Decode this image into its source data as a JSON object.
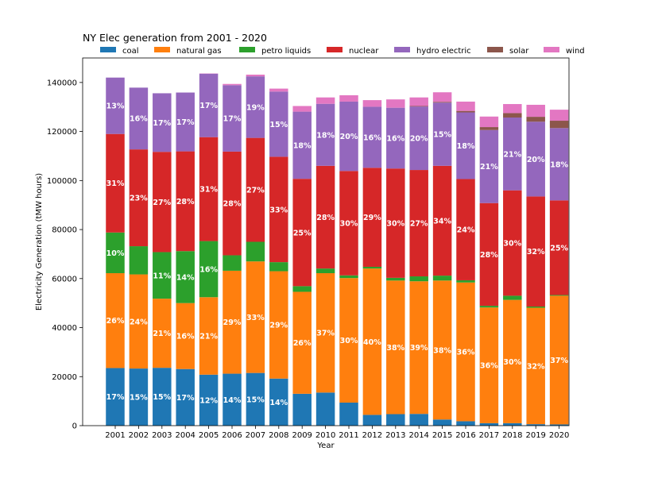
{
  "chart_data": {
    "type": "bar",
    "stacked": true,
    "title": "NY Elec generation from 2001 - 2020",
    "xlabel": "Year",
    "ylabel": "Electricity Generation (tMW hours)",
    "ylim": [
      0,
      150000
    ],
    "yticks": [
      0,
      20000,
      40000,
      60000,
      80000,
      100000,
      120000,
      140000
    ],
    "grid": false,
    "legend_position": "top",
    "categories": [
      "2001",
      "2002",
      "2003",
      "2004",
      "2005",
      "2006",
      "2007",
      "2008",
      "2009",
      "2010",
      "2011",
      "2012",
      "2013",
      "2014",
      "2015",
      "2016",
      "2017",
      "2018",
      "2019",
      "2020"
    ],
    "series": [
      {
        "name": "coal",
        "color": "#1f77b4",
        "values": [
          23500,
          23300,
          23600,
          23100,
          20800,
          21200,
          21500,
          19200,
          13000,
          13500,
          9400,
          4400,
          4700,
          4800,
          2500,
          1800,
          1000,
          1000,
          600,
          500
        ],
        "labels": [
          "17%",
          "15%",
          "15%",
          "17%",
          "12%",
          "14%",
          "15%",
          "14%",
          "",
          "",
          "",
          "",
          "",
          "",
          "",
          "",
          "",
          "",
          "",
          ""
        ]
      },
      {
        "name": "natural gas",
        "color": "#ff7f0e",
        "values": [
          38700,
          38400,
          28200,
          26900,
          31600,
          42000,
          45500,
          43800,
          41600,
          48700,
          50800,
          59700,
          54500,
          54100,
          56700,
          56600,
          47200,
          50300,
          47500,
          52500
        ],
        "labels": [
          "26%",
          "24%",
          "21%",
          "16%",
          "21%",
          "29%",
          "33%",
          "29%",
          "26%",
          "37%",
          "30%",
          "40%",
          "38%",
          "39%",
          "38%",
          "36%",
          "36%",
          "30%",
          "32%",
          "37%"
        ]
      },
      {
        "name": "petro liquids",
        "color": "#2ca02c",
        "values": [
          16600,
          11500,
          19000,
          21200,
          22900,
          6300,
          8000,
          3700,
          2300,
          1900,
          1100,
          700,
          1100,
          2000,
          2000,
          900,
          700,
          1700,
          500,
          300
        ],
        "labels": [
          "10%",
          "",
          "11%",
          "14%",
          "16%",
          "",
          "",
          "",
          "",
          "",
          "",
          "",
          "",
          "",
          "",
          "",
          "",
          "",
          "",
          ""
        ]
      },
      {
        "name": "nuclear",
        "color": "#d62728",
        "values": [
          40200,
          39500,
          40900,
          40700,
          42400,
          42300,
          42400,
          43000,
          43800,
          41900,
          42600,
          40400,
          44600,
          43400,
          44800,
          41300,
          41900,
          43000,
          44900,
          38600
        ],
        "labels": [
          "31%",
          "23%",
          "27%",
          "28%",
          "31%",
          "28%",
          "27%",
          "33%",
          "25%",
          "28%",
          "30%",
          "29%",
          "30%",
          "27%",
          "34%",
          "24%",
          "28%",
          "30%",
          "32%",
          "25%"
        ]
      },
      {
        "name": "hydro electric",
        "color": "#9467bd",
        "values": [
          23000,
          25200,
          23900,
          24000,
          25900,
          27100,
          25100,
          26600,
          27400,
          25300,
          28300,
          24900,
          24800,
          25900,
          25800,
          27200,
          29800,
          29700,
          30500,
          29500
        ],
        "labels": [
          "13%",
          "16%",
          "17%",
          "17%",
          "17%",
          "17%",
          "19%",
          "15%",
          "18%",
          "18%",
          "20%",
          "16%",
          "16%",
          "20%",
          "15%",
          "18%",
          "21%",
          "21%",
          "20%",
          "18%"
        ]
      },
      {
        "name": "solar",
        "color": "#8c564b",
        "values": [
          0,
          0,
          0,
          0,
          0,
          0,
          0,
          0,
          0,
          0,
          0,
          0,
          0,
          200,
          300,
          600,
          1200,
          1800,
          2000,
          3000
        ],
        "labels": [
          "",
          "",
          "",
          "",
          "",
          "",
          "",
          "",
          "",
          "",
          "",
          "",
          "",
          "",
          "",
          "",
          "",
          "",
          "",
          ""
        ]
      },
      {
        "name": "wind",
        "color": "#e377c2",
        "values": [
          0,
          0,
          0,
          0,
          100,
          500,
          700,
          1200,
          2300,
          2600,
          2600,
          2700,
          3400,
          3500,
          3900,
          3800,
          4300,
          3700,
          4900,
          4500
        ],
        "labels": [
          "",
          "",
          "",
          "",
          "",
          "",
          "",
          "",
          "",
          "",
          "",
          "",
          "",
          "",
          "",
          "",
          "",
          "",
          "",
          ""
        ]
      }
    ]
  }
}
